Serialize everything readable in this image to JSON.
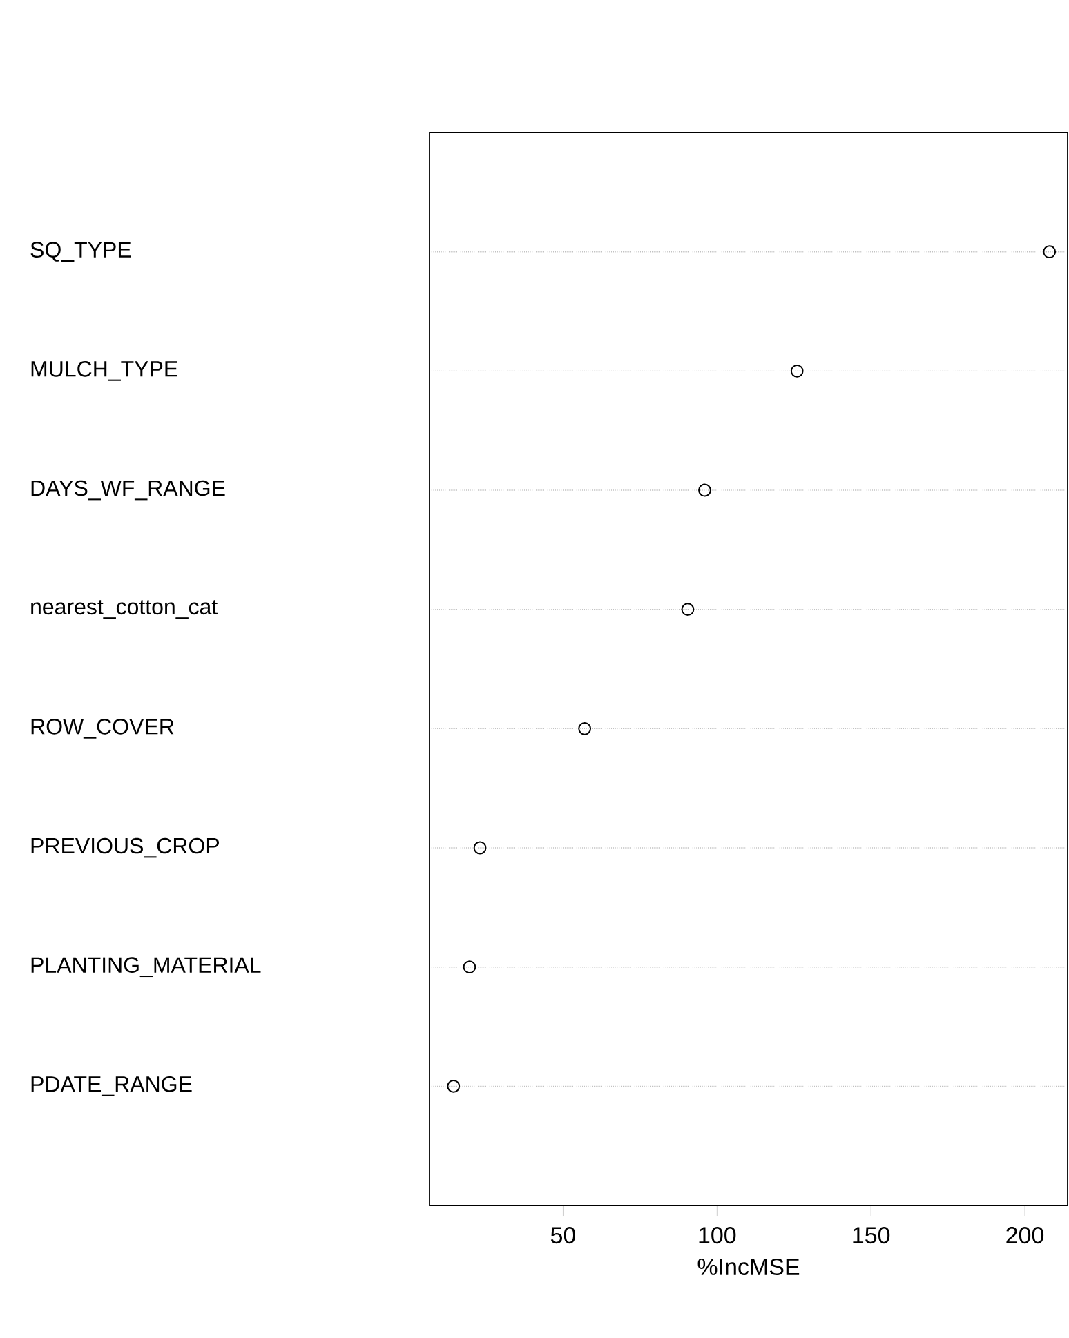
{
  "chart_data": {
    "type": "scatter",
    "orientation": "horizontal",
    "categories": [
      "SQ_TYPE",
      "MULCH_TYPE",
      "DAYS_WF_RANGE",
      "nearest_cotton_cat",
      "ROW_COVER",
      "PREVIOUS_CROP",
      "PLANTING_MATERIAL",
      "PDATE_RANGE"
    ],
    "values": [
      208,
      126,
      96,
      90.5,
      57,
      23,
      19.6,
      14.4
    ],
    "color": "#000000",
    "marker": "circle",
    "grid": "y",
    "xlabel": "%IncMSE",
    "xlim": [
      6.6,
      213.9
    ],
    "xticks": [
      50,
      100,
      150,
      200
    ]
  }
}
